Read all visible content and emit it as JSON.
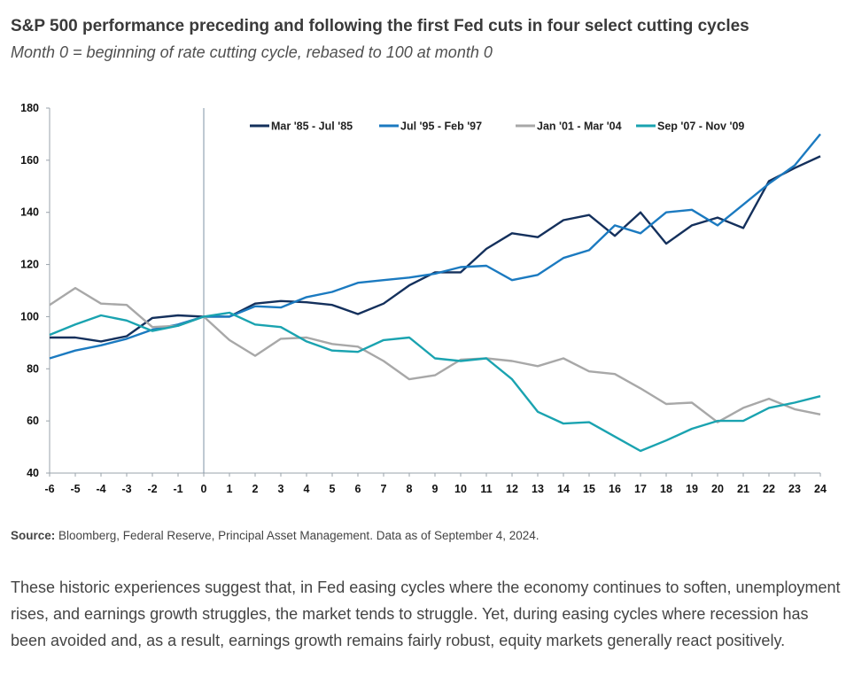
{
  "header": {
    "title": "S&P 500 performance preceding and following the first Fed cuts in four select cutting cycles",
    "subtitle": "Month 0 = beginning of rate cutting cycle, rebased to 100 at month 0"
  },
  "source": {
    "label": "Source:",
    "text": " Bloomberg, Federal Reserve, Principal Asset Management. Data as of September 4, 2024."
  },
  "body": {
    "paragraph": "These historic experiences suggest that, in Fed easing cycles where the economy continues to soften, unemployment rises, and earnings growth struggles, the market tends to struggle. Yet, during easing cycles where recession has been avoided and, as a result, earnings growth remains fairly robust, equity markets generally react positively."
  },
  "chart_data": {
    "type": "line",
    "title": "",
    "xlabel": "",
    "ylabel": "",
    "x": [
      -6,
      -5,
      -4,
      -3,
      -2,
      -1,
      0,
      1,
      2,
      3,
      4,
      5,
      6,
      7,
      8,
      9,
      10,
      11,
      12,
      13,
      14,
      15,
      16,
      17,
      18,
      19,
      20,
      21,
      22,
      23,
      24
    ],
    "xlim": [
      -6,
      24
    ],
    "ylim": [
      40,
      180
    ],
    "yticks": [
      40,
      60,
      80,
      100,
      120,
      140,
      160,
      180
    ],
    "grid": false,
    "vline_at": 0,
    "legend_position": "top",
    "series": [
      {
        "name": "Mar '85 - Jul '85",
        "color": "#14305c",
        "values": [
          92,
          92,
          90.5,
          92.5,
          99.5,
          100.5,
          100,
          100,
          105,
          106,
          105.5,
          104.5,
          101,
          105,
          112,
          117,
          117,
          126,
          132,
          130.5,
          137,
          139,
          131,
          140,
          128,
          135,
          138,
          134,
          152,
          157,
          161.5
        ]
      },
      {
        "name": "Jul '95 - Feb '97",
        "color": "#1b7ac0",
        "values": [
          84,
          87,
          89,
          91.5,
          95,
          97,
          100,
          100,
          104,
          103.5,
          107.5,
          109.5,
          113,
          114,
          115,
          116.5,
          119,
          119.5,
          114,
          116,
          122.5,
          125.5,
          135,
          132,
          140,
          141,
          135,
          143,
          151,
          158,
          170
        ]
      },
      {
        "name": "Jan '01 - Mar '04",
        "color": "#a8a8a8",
        "values": [
          104.5,
          111,
          105,
          104.5,
          96,
          96.5,
          100,
          91,
          85,
          91.5,
          92,
          89.5,
          88.5,
          83,
          76,
          77.5,
          83.5,
          84,
          83,
          81,
          84,
          79,
          78,
          72.5,
          66.5,
          67,
          59.5,
          65,
          68.5,
          64.5,
          62.5
        ]
      },
      {
        "name": "Sep '07 - Nov '09",
        "color": "#1aa3b0",
        "values": [
          93,
          97,
          100.5,
          98.5,
          94.5,
          96.5,
          100,
          101.5,
          97,
          96,
          90.5,
          87,
          86.5,
          91,
          92,
          84,
          83,
          84,
          76,
          63.5,
          59,
          59.5,
          54,
          48.5,
          52.5,
          57,
          60,
          60,
          65,
          67,
          69.5
        ]
      }
    ]
  }
}
